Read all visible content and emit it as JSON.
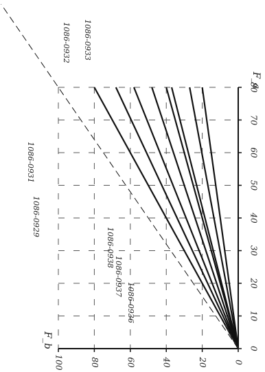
{
  "chart_data": {
    "type": "line",
    "title": "",
    "xlabel": "F_a",
    "ylabel": "F_b",
    "xlim": [
      0,
      80
    ],
    "ylim": [
      0,
      100
    ],
    "x_ticks": [
      "0",
      "10",
      "20",
      "30",
      "40",
      "50",
      "60",
      "70",
      "80"
    ],
    "y_ticks": [
      "0",
      "20",
      "40",
      "60",
      "80",
      "100"
    ],
    "grid": "dashed",
    "series": [
      {
        "name": "1086-0936",
        "x": [
          0,
          80
        ],
        "y": [
          0,
          20
        ]
      },
      {
        "name": "1086-0937",
        "x": [
          0,
          80
        ],
        "y": [
          0,
          27
        ]
      },
      {
        "name": "1086-0938",
        "x": [
          0,
          80
        ],
        "y": [
          0,
          37
        ]
      },
      {
        "name": "1086-0929",
        "x": [
          0,
          80
        ],
        "y": [
          0,
          40
        ]
      },
      {
        "name": "",
        "x": [
          0,
          80
        ],
        "y": [
          0,
          48
        ]
      },
      {
        "name": "1086-0931",
        "x": [
          0,
          80
        ],
        "y": [
          0,
          58
        ]
      },
      {
        "name": "",
        "x": [
          0,
          80
        ],
        "y": [
          0,
          68
        ]
      },
      {
        "name": "1086-0932",
        "x": [
          0,
          80
        ],
        "y": [
          0,
          80
        ]
      },
      {
        "name": "1086-0933",
        "x": [
          0,
          80
        ],
        "y": [
          0,
          100
        ]
      }
    ]
  }
}
